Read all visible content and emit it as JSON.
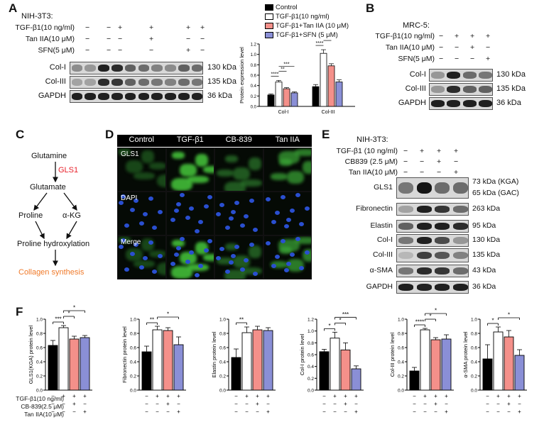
{
  "panelA": {
    "label": "A",
    "cell_line": "NIH-3T3:",
    "rows": [
      {
        "name": "TGF-β1(10 ng/ml)",
        "signs": [
          "−",
          "−",
          "+",
          "+",
          "+",
          "+"
        ]
      },
      {
        "name": "Tan IIA(10 μM)",
        "signs": [
          "−",
          "−",
          "−",
          "+",
          "−",
          "−"
        ]
      },
      {
        "name": "SFN(5 μM)",
        "signs": [
          "−",
          "−",
          "−",
          "−",
          "+",
          "−"
        ]
      }
    ],
    "blots": [
      {
        "name": "Col-I",
        "kda": "130 kDa"
      },
      {
        "name": "Col-III",
        "kda": "135 kDa"
      },
      {
        "name": "GAPDH",
        "kda": "36 kDa"
      }
    ],
    "legend": [
      "Control",
      "TGF-β1(10 ng/ml)",
      "TGF-β1+Tan IIA (10 μM)",
      "TGF-β1+SFN (5 μM)"
    ]
  },
  "panelB": {
    "label": "B",
    "cell_line": "MRC-5:",
    "rows": [
      {
        "name": "TGF-β1(10 ng/ml)",
        "signs": [
          "−",
          "+",
          "+",
          "+"
        ]
      },
      {
        "name": "Tan IIA(10 μM)",
        "signs": [
          "−",
          "−",
          "+",
          "−"
        ]
      },
      {
        "name": "SFN(5 μM)",
        "signs": [
          "−",
          "−",
          "−",
          "+"
        ]
      }
    ],
    "blots": [
      {
        "name": "Col-I",
        "kda": "130 kDa"
      },
      {
        "name": "Col-III",
        "kda": "135 kDa"
      },
      {
        "name": "GAPDH",
        "kda": "36 kDa"
      }
    ]
  },
  "panelC": {
    "label": "C",
    "nodes": [
      "Glutamine",
      "GLS1",
      "Glutamate",
      "Proline",
      "α-KG",
      "Proline hydroxylation",
      "Collagen synthesis"
    ]
  },
  "panelD": {
    "label": "D",
    "columns": [
      "Control",
      "TGF-β1",
      "CB-839",
      "Tan IIA"
    ],
    "rows": [
      "GLS1",
      "DAPI",
      "Merge"
    ]
  },
  "panelE": {
    "label": "E",
    "cell_line": "NIH-3T3:",
    "rows": [
      {
        "name": "TGF-β1 (10 ng/ml)",
        "signs": [
          "−",
          "+",
          "+",
          "+"
        ]
      },
      {
        "name": "CB839 (2.5 μM)",
        "signs": [
          "−",
          "−",
          "+",
          "−"
        ]
      },
      {
        "name": "Tan IIA(10 μM)",
        "signs": [
          "−",
          "−",
          "−",
          "+"
        ]
      }
    ],
    "blots": [
      {
        "name": "GLS1",
        "kda": "73 kDa (KGA)",
        "kda2": "65 kDa (GAC)"
      },
      {
        "name": "Fibronectin",
        "kda": "263 kDa"
      },
      {
        "name": "Elastin",
        "kda": "95 kDa"
      },
      {
        "name": "Col-I",
        "kda": "130 kDa"
      },
      {
        "name": "Col-III",
        "kda": "135 kDa"
      },
      {
        "name": "α-SMA",
        "kda": "43 kDa"
      },
      {
        "name": "GAPDH",
        "kda": "36 kDa"
      }
    ]
  },
  "panelF": {
    "label": "F",
    "rows": [
      {
        "name": "TGF-β1(10 ng/ml)",
        "signs": [
          "−",
          "+",
          "+",
          "+"
        ]
      },
      {
        "name": "CB-839(2.5 μM)",
        "signs": [
          "−",
          "−",
          "+",
          "−"
        ]
      },
      {
        "name": "Tan IIA(10 μM)",
        "signs": [
          "−",
          "−",
          "−",
          "+"
        ]
      }
    ]
  },
  "colors": {
    "control": "#000000",
    "tgf": "#ffffff",
    "tan": "#f4908a",
    "third": "#8a8fd6",
    "gls1_red": "#e8202a",
    "collagen_orange": "#f07a2a"
  },
  "chart_data": [
    {
      "type": "bar",
      "id": "A-quant",
      "ylabel": "Protein expression level",
      "categories": [
        "Col-I",
        "Col-III"
      ],
      "ylim": [
        0,
        1.2
      ],
      "yticks": [
        "0.0",
        "0.2",
        "0.4",
        "0.6",
        "0.8",
        "1.0",
        "1.2"
      ],
      "series": [
        {
          "name": "Control",
          "values": [
            0.22,
            0.38
          ],
          "errors": [
            0.02,
            0.04
          ]
        },
        {
          "name": "TGF-β1(10 ng/ml)",
          "values": [
            0.47,
            1.02
          ],
          "errors": [
            0.03,
            0.07
          ]
        },
        {
          "name": "TGF-β1+Tan IIA (10 μM)",
          "values": [
            0.34,
            0.78
          ],
          "errors": [
            0.02,
            0.04
          ]
        },
        {
          "name": "TGF-β1+SFN (5 μM)",
          "values": [
            0.26,
            0.47
          ],
          "errors": [
            0.02,
            0.04
          ]
        }
      ],
      "sig": [
        {
          "text": "****",
          "cat": 0,
          "from": 0,
          "to": 1,
          "level": 0
        },
        {
          "text": "**",
          "cat": 0,
          "from": 1,
          "to": 2,
          "level": 1
        },
        {
          "text": "***",
          "cat": 0,
          "from": 1,
          "to": 3,
          "level": 2
        },
        {
          "text": "****",
          "cat": 1,
          "from": 0,
          "to": 1,
          "level": 0
        },
        {
          "text": "*",
          "cat": 1,
          "from": 1,
          "to": 2,
          "level": 1
        },
        {
          "text": "***",
          "cat": 1,
          "from": 1,
          "to": 3,
          "level": 2
        }
      ]
    },
    {
      "type": "bar",
      "id": "F1",
      "ylabel": "GLS1(KGA) protein level",
      "ylim": [
        0,
        1.0
      ],
      "yticks": [
        "0.0",
        "0.2",
        "0.4",
        "0.6",
        "0.8",
        "1.0"
      ],
      "values": [
        0.63,
        0.88,
        0.72,
        0.74
      ],
      "errors": [
        0.07,
        0.03,
        0.04,
        0.03
      ],
      "sig": [
        {
          "text": "***",
          "from": 0,
          "to": 1,
          "level": 0
        },
        {
          "text": "*",
          "from": 1,
          "to": 2,
          "level": 1
        },
        {
          "text": "*",
          "from": 1,
          "to": 3,
          "level": 2
        }
      ]
    },
    {
      "type": "bar",
      "id": "F2",
      "ylabel": "Fibronectin protein level",
      "ylim": [
        0,
        1.0
      ],
      "yticks": [
        "0.0",
        "0.2",
        "0.4",
        "0.6",
        "0.8",
        "1.0"
      ],
      "values": [
        0.54,
        0.85,
        0.84,
        0.64
      ],
      "errors": [
        0.08,
        0.05,
        0.04,
        0.11
      ],
      "sig": [
        {
          "text": "**",
          "from": 0,
          "to": 1,
          "level": 0
        },
        {
          "text": "*",
          "from": 1,
          "to": 3,
          "level": 1
        }
      ]
    },
    {
      "type": "bar",
      "id": "F3",
      "ylabel": "Elastin protein level",
      "ylim": [
        0,
        1.0
      ],
      "yticks": [
        "0.0",
        "0.2",
        "0.4",
        "0.6",
        "0.8",
        "1.0"
      ],
      "values": [
        0.46,
        0.81,
        0.85,
        0.84
      ],
      "errors": [
        0.12,
        0.08,
        0.05,
        0.04
      ],
      "sig": [
        {
          "text": "**",
          "from": 0,
          "to": 1,
          "level": 0
        }
      ]
    },
    {
      "type": "bar",
      "id": "F4",
      "ylabel": "Col-I protein level",
      "ylim": [
        0,
        1.2
      ],
      "yticks": [
        "0.0",
        "0.2",
        "0.4",
        "0.6",
        "0.8",
        "1.0",
        "1.2"
      ],
      "values": [
        0.65,
        0.88,
        0.68,
        0.36
      ],
      "errors": [
        0.04,
        0.1,
        0.12,
        0.05
      ],
      "sig": [
        {
          "text": "*",
          "from": 0,
          "to": 1,
          "level": 0
        },
        {
          "text": "*",
          "from": 1,
          "to": 2,
          "level": 1
        },
        {
          "text": "***",
          "from": 1,
          "to": 3,
          "level": 2
        }
      ]
    },
    {
      "type": "bar",
      "id": "F5",
      "ylabel": "Col-III protein level",
      "ylim": [
        0,
        1.0
      ],
      "yticks": [
        "0.0",
        "0.2",
        "0.4",
        "0.6",
        "0.8",
        "1.0"
      ],
      "values": [
        0.27,
        0.85,
        0.71,
        0.72
      ],
      "errors": [
        0.05,
        0.02,
        0.03,
        0.06
      ],
      "sig": [
        {
          "text": "****",
          "from": 0,
          "to": 1,
          "level": 0
        },
        {
          "text": "*",
          "from": 1,
          "to": 2,
          "level": 1
        },
        {
          "text": "*",
          "from": 1,
          "to": 3,
          "level": 2
        }
      ]
    },
    {
      "type": "bar",
      "id": "F6",
      "ylabel": "α-SMA protein level",
      "ylim": [
        0,
        1.0
      ],
      "yticks": [
        "0.0",
        "0.2",
        "0.4",
        "0.6",
        "0.8",
        "1.0"
      ],
      "values": [
        0.44,
        0.82,
        0.75,
        0.49
      ],
      "errors": [
        0.2,
        0.07,
        0.09,
        0.08
      ],
      "sig": [
        {
          "text": "*",
          "from": 0,
          "to": 1,
          "level": 0
        },
        {
          "text": "*",
          "from": 1,
          "to": 3,
          "level": 1
        }
      ]
    }
  ]
}
